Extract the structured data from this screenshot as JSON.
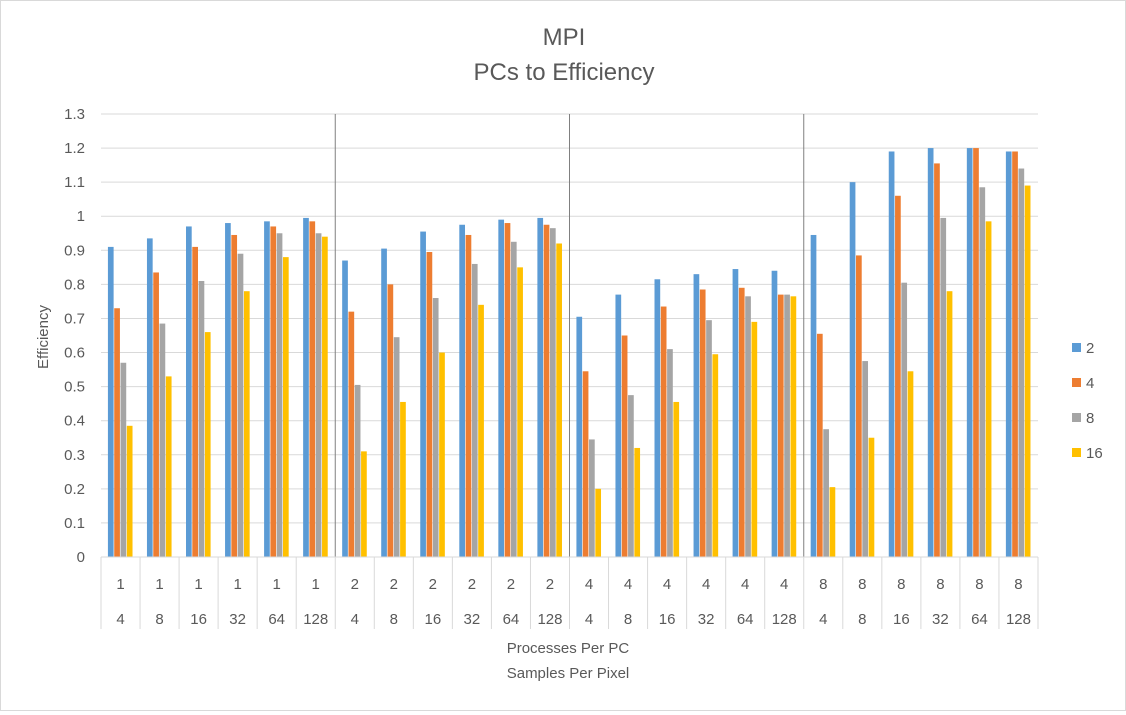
{
  "chart_data": {
    "type": "bar",
    "title": "MPI",
    "subtitle": "PCs to Efficiency",
    "ylabel": "Efficiency",
    "xlabel_lines": [
      "Processes Per PC",
      "Samples Per Pixel"
    ],
    "ylim": [
      0,
      1.3
    ],
    "yticks": [
      "0",
      "0.1",
      "0.2",
      "0.3",
      "0.4",
      "0.5",
      "0.6",
      "0.7",
      "0.8",
      "0.9",
      "1",
      "1.1",
      "1.2",
      "1.3"
    ],
    "grid": true,
    "legend_position": "right",
    "categories_outer": [
      "1",
      "1",
      "1",
      "1",
      "1",
      "1",
      "2",
      "2",
      "2",
      "2",
      "2",
      "2",
      "4",
      "4",
      "4",
      "4",
      "4",
      "4",
      "8",
      "8",
      "8",
      "8",
      "8",
      "8"
    ],
    "categories_inner": [
      "4",
      "8",
      "16",
      "32",
      "64",
      "128",
      "4",
      "8",
      "16",
      "32",
      "64",
      "128",
      "4",
      "8",
      "16",
      "32",
      "64",
      "128",
      "4",
      "8",
      "16",
      "32",
      "64",
      "128"
    ],
    "series": [
      {
        "name": "2",
        "color": "#5B9BD5",
        "values": [
          0.91,
          0.935,
          0.97,
          0.98,
          0.985,
          0.995,
          0.87,
          0.905,
          0.955,
          0.975,
          0.99,
          0.995,
          0.705,
          0.77,
          0.815,
          0.83,
          0.845,
          0.84,
          0.945,
          1.1,
          1.19,
          1.2,
          1.2,
          1.19
        ]
      },
      {
        "name": "4",
        "color": "#ED7D31",
        "values": [
          0.73,
          0.835,
          0.91,
          0.945,
          0.97,
          0.985,
          0.72,
          0.8,
          0.895,
          0.945,
          0.98,
          0.975,
          0.545,
          0.65,
          0.735,
          0.785,
          0.79,
          0.77,
          0.655,
          0.885,
          1.06,
          1.155,
          1.2,
          1.19
        ]
      },
      {
        "name": "8",
        "color": "#A5A5A5",
        "values": [
          0.57,
          0.685,
          0.81,
          0.89,
          0.95,
          0.95,
          0.505,
          0.645,
          0.76,
          0.86,
          0.925,
          0.965,
          0.345,
          0.475,
          0.61,
          0.695,
          0.765,
          0.77,
          0.375,
          0.575,
          0.805,
          0.995,
          1.085,
          1.14
        ]
      },
      {
        "name": "16",
        "color": "#FFC000",
        "values": [
          0.385,
          0.53,
          0.66,
          0.78,
          0.88,
          0.94,
          0.31,
          0.455,
          0.6,
          0.74,
          0.85,
          0.92,
          0.2,
          0.32,
          0.455,
          0.595,
          0.69,
          0.765,
          0.205,
          0.35,
          0.545,
          0.78,
          0.985,
          1.09
        ]
      }
    ]
  }
}
